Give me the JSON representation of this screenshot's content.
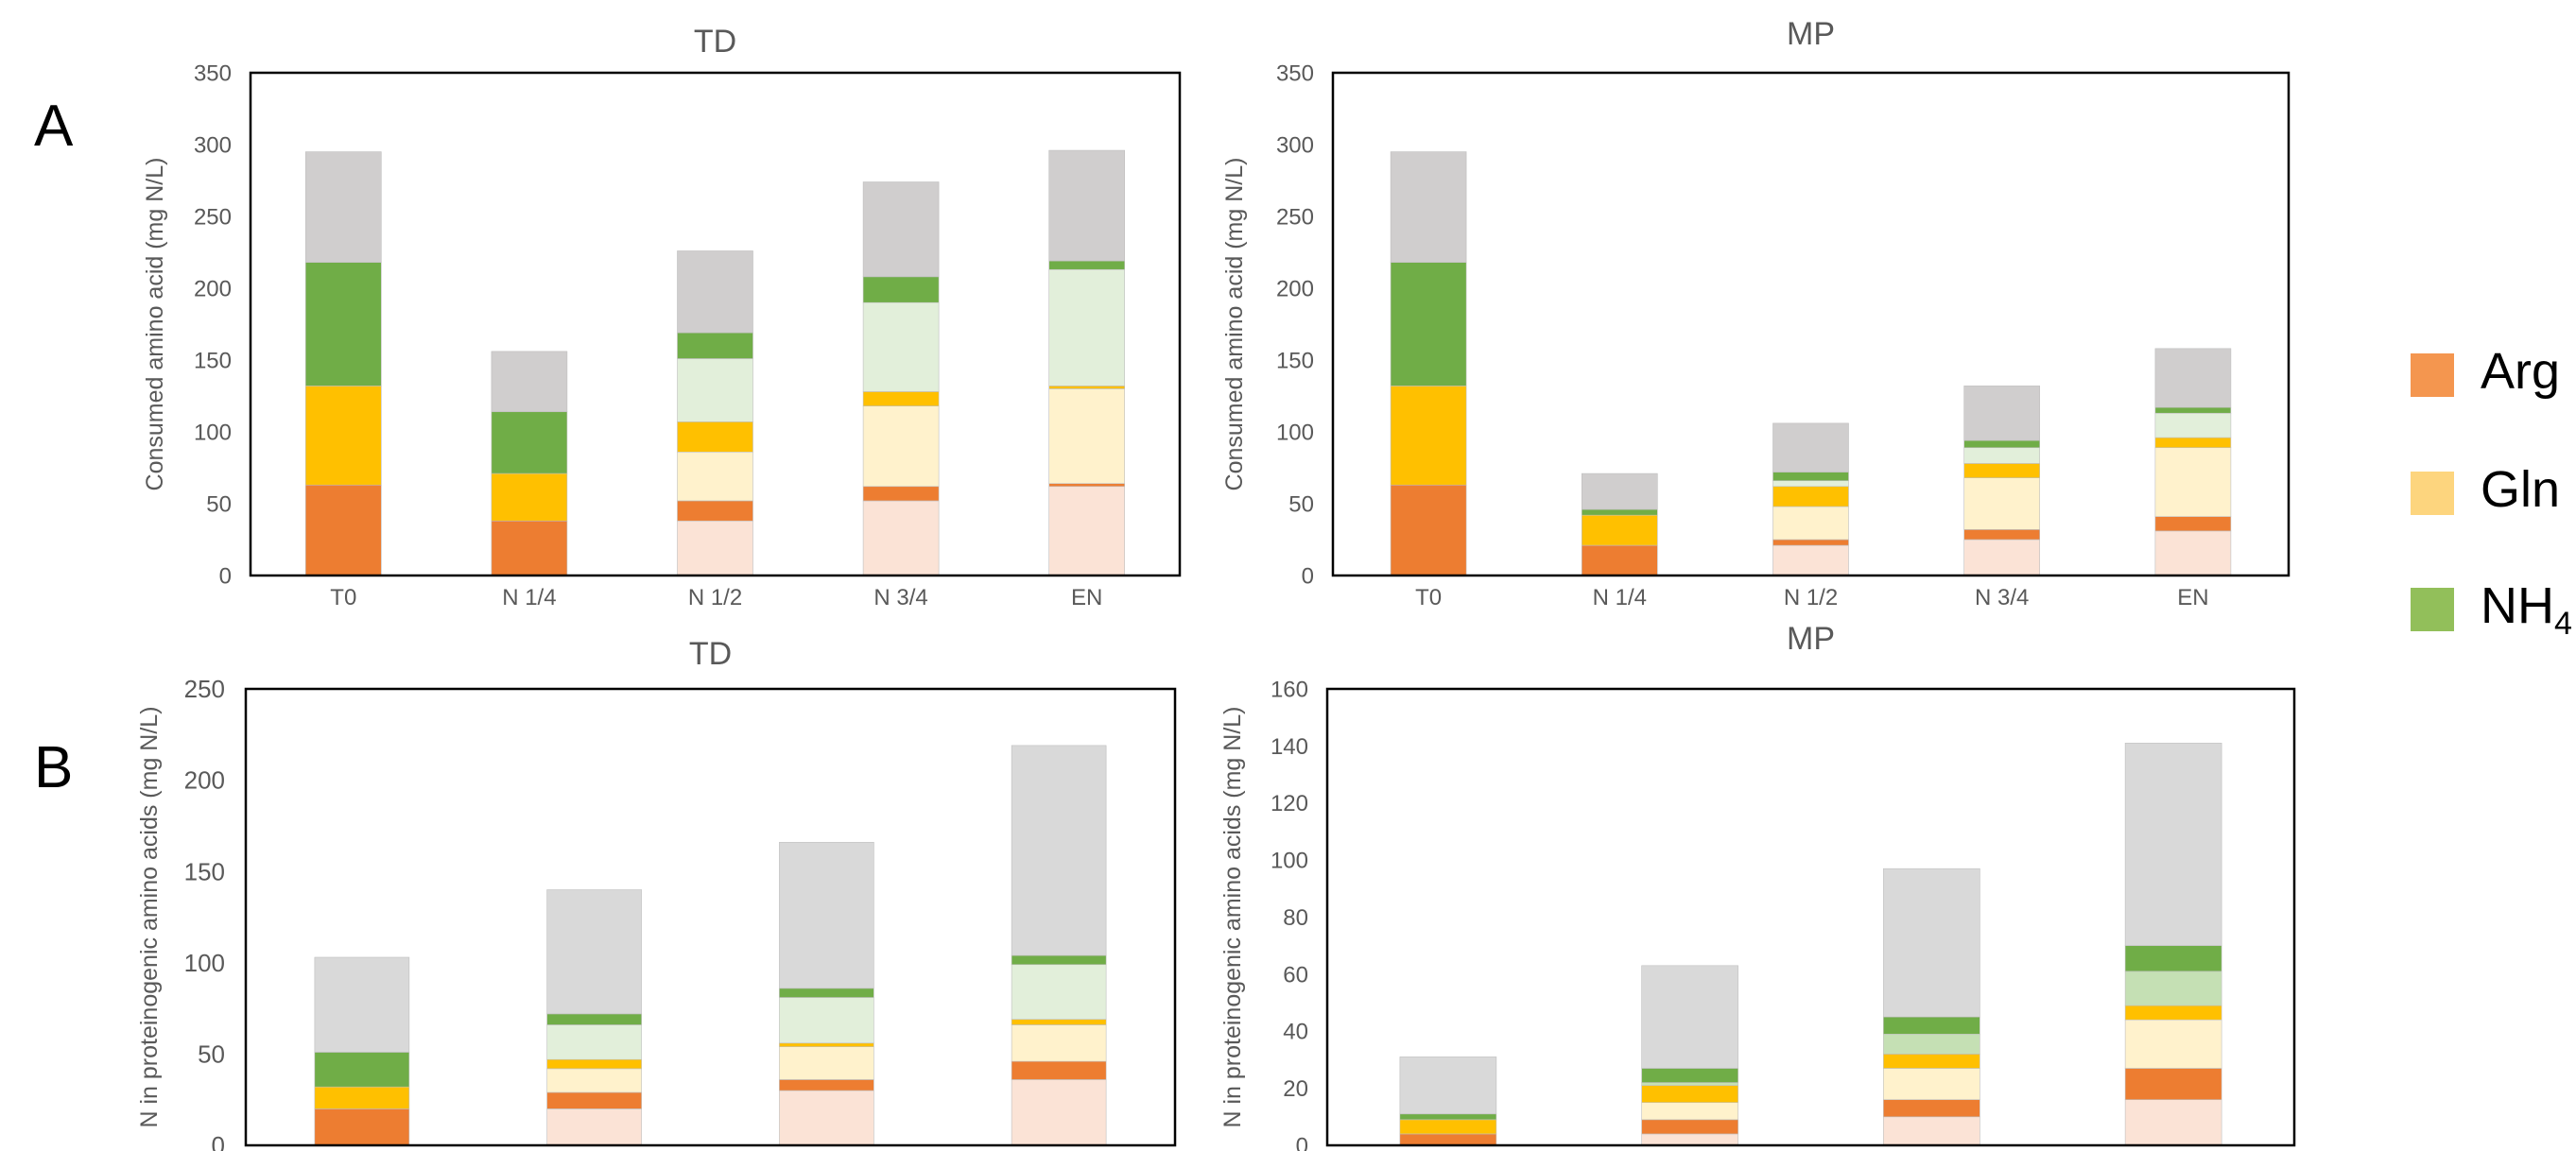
{
  "panels": {
    "a": "A",
    "b": "B"
  },
  "legend": [
    {
      "label": "Arg",
      "sub": "",
      "color": "#F4964F"
    },
    {
      "label": "Gln",
      "sub": "",
      "color": "#FDD57E"
    },
    {
      "label": "NH",
      "sub": "4",
      "color": "#92BF5A"
    }
  ],
  "chart_data": [
    {
      "type": "bar",
      "stacked": true,
      "title": "TD",
      "ylabel": "Consumed amino acid (mg N/L)",
      "ylim": [
        0,
        350
      ],
      "yticks": [
        0,
        50,
        100,
        150,
        200,
        250,
        300,
        350
      ],
      "categories": [
        "T0",
        "N 1/4",
        "N 1/2",
        "N 3/4",
        "EN"
      ],
      "series": [
        {
          "role": "arg_light",
          "color": "#FBE3D6",
          "values": [
            0,
            0,
            38,
            52,
            62
          ]
        },
        {
          "role": "arg",
          "color": "#ED7D31",
          "values": [
            63,
            38,
            14,
            10,
            2
          ]
        },
        {
          "role": "gln_light",
          "color": "#FFF2CC",
          "values": [
            0,
            0,
            34,
            56,
            66
          ]
        },
        {
          "role": "gln",
          "color": "#FFC000",
          "values": [
            69,
            33,
            21,
            10,
            2
          ]
        },
        {
          "role": "nh4_light",
          "color": "#E2EFDA",
          "values": [
            0,
            0,
            44,
            62,
            81
          ]
        },
        {
          "role": "nh4",
          "color": "#70AD47",
          "values": [
            86,
            43,
            18,
            18,
            6
          ]
        },
        {
          "role": "other",
          "color": "#D0CECE",
          "values": [
            77,
            42,
            57,
            66,
            77
          ]
        }
      ]
    },
    {
      "type": "bar",
      "stacked": true,
      "title": "MP",
      "ylabel": "Consumed amino acid (mg N/L)",
      "ylim": [
        0,
        350
      ],
      "yticks": [
        0,
        50,
        100,
        150,
        200,
        250,
        300,
        350
      ],
      "categories": [
        "T0",
        "N 1/4",
        "N 1/2",
        "N 3/4",
        "EN"
      ],
      "series": [
        {
          "role": "arg_light",
          "color": "#FBE3D6",
          "values": [
            0,
            0,
            21,
            25,
            31
          ]
        },
        {
          "role": "arg",
          "color": "#ED7D31",
          "values": [
            63,
            21,
            4,
            7,
            10
          ]
        },
        {
          "role": "gln_light",
          "color": "#FFF2CC",
          "values": [
            0,
            0,
            23,
            36,
            48
          ]
        },
        {
          "role": "gln",
          "color": "#FFC000",
          "values": [
            69,
            21,
            14,
            10,
            7
          ]
        },
        {
          "role": "nh4_light",
          "color": "#E2EFDA",
          "values": [
            0,
            0,
            4,
            11,
            17
          ]
        },
        {
          "role": "nh4",
          "color": "#70AD47",
          "values": [
            86,
            4,
            6,
            5,
            4
          ]
        },
        {
          "role": "other",
          "color": "#D0CECE",
          "values": [
            77,
            25,
            34,
            38,
            41
          ]
        }
      ]
    },
    {
      "type": "bar",
      "stacked": true,
      "title": "TD",
      "ylabel": "N in proteinogenic amino acids (mg N/L)",
      "ylim": [
        0,
        250
      ],
      "yticks": [
        0,
        50,
        100,
        150,
        200,
        250
      ],
      "categories": [
        "",
        "",
        "",
        ""
      ],
      "series": [
        {
          "role": "arg_light",
          "color": "#FBE3D6",
          "values": [
            0,
            20,
            30,
            36
          ]
        },
        {
          "role": "arg",
          "color": "#ED7D31",
          "values": [
            20,
            9,
            6,
            10
          ]
        },
        {
          "role": "gln_light",
          "color": "#FFF2CC",
          "values": [
            0,
            13,
            18,
            20
          ]
        },
        {
          "role": "gln",
          "color": "#FFC000",
          "values": [
            12,
            5,
            2,
            3
          ]
        },
        {
          "role": "nh4_light",
          "color": "#E2EFDA",
          "values": [
            0,
            19,
            25,
            30
          ]
        },
        {
          "role": "nh4",
          "color": "#70AD47",
          "values": [
            19,
            6,
            5,
            5
          ]
        },
        {
          "role": "other",
          "color": "#D9D9D9",
          "values": [
            52,
            68,
            80,
            115
          ]
        }
      ]
    },
    {
      "type": "bar",
      "stacked": true,
      "title": "MP",
      "ylabel": "N in proteinogenic amino acids (mg N/L)",
      "ylim": [
        0,
        160
      ],
      "yticks": [
        0,
        20,
        40,
        60,
        80,
        100,
        120,
        140,
        160
      ],
      "categories": [
        "",
        "",
        "",
        ""
      ],
      "series": [
        {
          "role": "arg_light",
          "color": "#FBE3D6",
          "values": [
            0,
            4,
            10,
            16
          ]
        },
        {
          "role": "arg",
          "color": "#ED7D31",
          "values": [
            4,
            5,
            6,
            11
          ]
        },
        {
          "role": "gln_light",
          "color": "#FFF2CC",
          "values": [
            0,
            6,
            11,
            17
          ]
        },
        {
          "role": "gln",
          "color": "#FFC000",
          "values": [
            5,
            6,
            5,
            5
          ]
        },
        {
          "role": "nh4_light",
          "color": "#C5E0B4",
          "values": [
            0,
            1,
            7,
            12
          ]
        },
        {
          "role": "nh4",
          "color": "#70AD47",
          "values": [
            2,
            5,
            6,
            9
          ]
        },
        {
          "role": "other",
          "color": "#D9D9D9",
          "values": [
            20,
            36,
            52,
            71
          ]
        }
      ]
    }
  ]
}
